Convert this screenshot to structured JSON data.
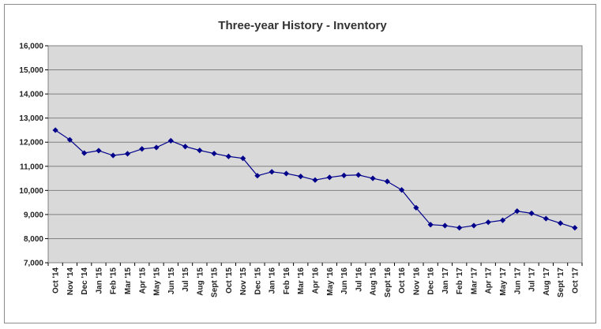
{
  "chart_data": {
    "type": "line",
    "title": "Three-year History - Inventory",
    "xlabel": "",
    "ylabel": "",
    "ylim": [
      7000,
      16000
    ],
    "yticks": [
      7000,
      8000,
      9000,
      10000,
      11000,
      12000,
      13000,
      14000,
      15000,
      16000
    ],
    "ytick_labels": [
      "7,000",
      "8,000",
      "9,000",
      "10,000",
      "11,000",
      "12,000",
      "13,000",
      "14,000",
      "15,000",
      "16,000"
    ],
    "grid": "horizontal",
    "categories": [
      "Oct '14",
      "Nov '14",
      "Dec '14",
      "Jan '15",
      "Feb '15",
      "Mar '15",
      "Apr '15",
      "May '15",
      "Jun '15",
      "Jul '15",
      "Aug '15",
      "Sept '15",
      "Oct '15",
      "Nov '15",
      "Dec '15",
      "Jan '16",
      "Feb '16",
      "Mar '16",
      "Apr '16",
      "May '16",
      "Jun '16",
      "Jul '16",
      "Aug '16",
      "Sept '16",
      "Oct '16",
      "Nov '16",
      "Dec '16",
      "Jan '17",
      "Feb '17",
      "Mar '17",
      "Apr '17",
      "May '17",
      "Jun '17",
      "Jul '17",
      "Aug '17",
      "Sept '17",
      "Oct '17"
    ],
    "series": [
      {
        "values": [
          12500,
          12100,
          11550,
          11650,
          11450,
          11520,
          11720,
          11780,
          12060,
          11820,
          11660,
          11530,
          11410,
          11330,
          10610,
          10770,
          10700,
          10580,
          10430,
          10540,
          10620,
          10640,
          10500,
          10370,
          10020,
          9280,
          8580,
          8540,
          8450,
          8540,
          8680,
          8760,
          9140,
          9050,
          8830,
          8640,
          8450
        ]
      }
    ],
    "colors": {
      "line": "#00008b",
      "plot_background": "#d9d9d9",
      "grid": "#808080",
      "frame": "#8c8c8c"
    }
  }
}
